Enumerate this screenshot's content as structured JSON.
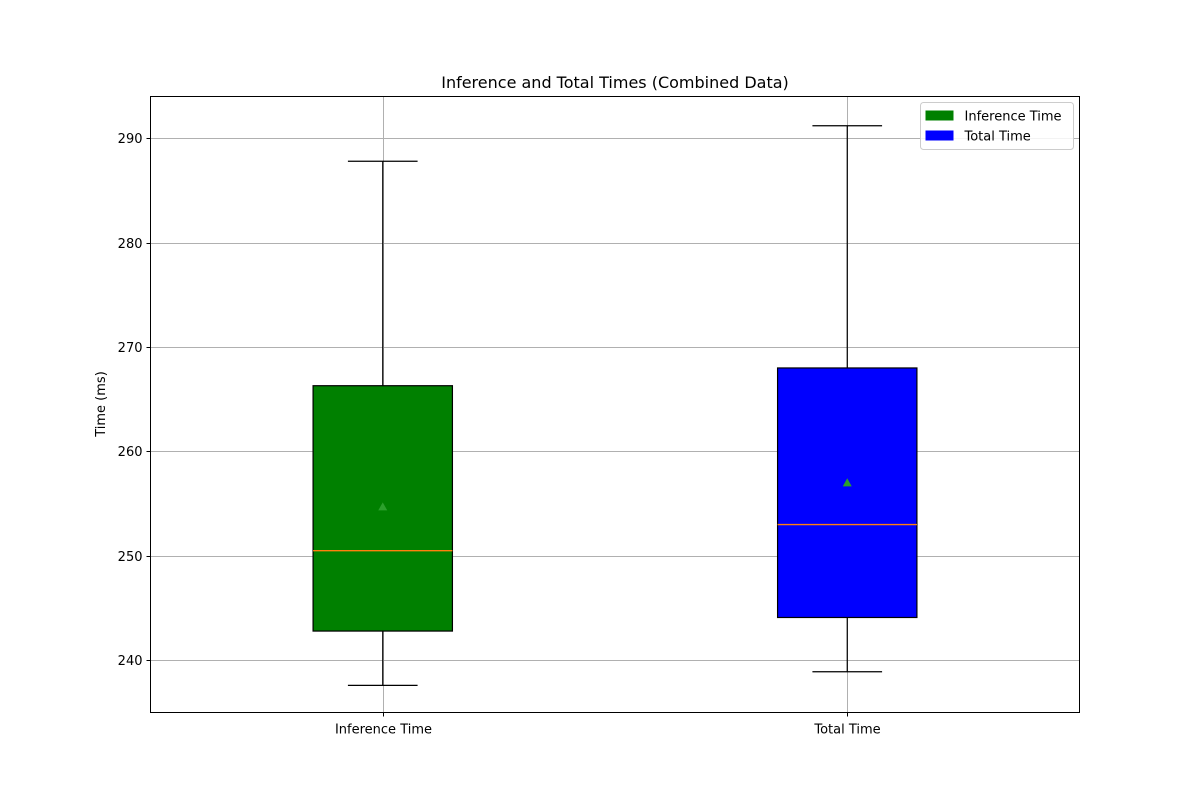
{
  "chart_data": {
    "type": "box",
    "title": "Inference and Total Times (Combined Data)",
    "xlabel": "",
    "ylabel": "Time (ms)",
    "ylim": [
      235,
      294
    ],
    "yticks": [
      240,
      250,
      260,
      270,
      280,
      290
    ],
    "grid": true,
    "legend_position": "top-right",
    "categories": [
      "Inference Time",
      "Total Time"
    ],
    "series": [
      {
        "name": "Inference Time",
        "color": "#008000",
        "whisker_low": 237.6,
        "q1": 242.8,
        "median": 250.5,
        "q3": 266.3,
        "whisker_high": 287.8,
        "mean": 254.7
      },
      {
        "name": "Total Time",
        "color": "#0000ff",
        "whisker_low": 238.9,
        "q1": 244.1,
        "median": 253.0,
        "q3": 268.0,
        "whisker_high": 291.2,
        "mean": 257.0
      }
    ],
    "median_color": "#ff7f0e",
    "mean_marker_color": "#2ca02c"
  }
}
